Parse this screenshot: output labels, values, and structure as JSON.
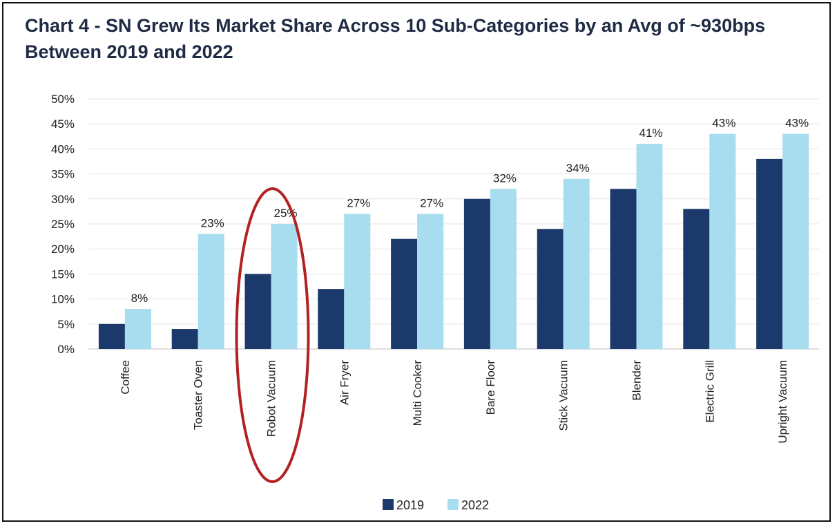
{
  "chart_data": {
    "type": "bar",
    "title": "Chart 4 - SN Grew Its Market Share Across 10 Sub-Categories by an Avg of ~930bps Between 2019 and 2022",
    "categories": [
      "Coffee",
      "Toaster Oven",
      "Robot Vacuum",
      "Air Fryer",
      "Multi Cooker",
      "Bare Floor",
      "Stick Vacuum",
      "Blender",
      "Electric Grill",
      "Upright Vacuum"
    ],
    "series": [
      {
        "name": "2019",
        "values": [
          5,
          4,
          15,
          12,
          22,
          30,
          24,
          32,
          28,
          38
        ],
        "color": "#1b3a6b"
      },
      {
        "name": "2022",
        "values": [
          8,
          23,
          25,
          27,
          27,
          32,
          34,
          41,
          43,
          43
        ],
        "color": "#a8dcef"
      }
    ],
    "data_labels": {
      "series": "2022",
      "values": [
        "8%",
        "23%",
        "25%",
        "27%",
        "27%",
        "32%",
        "34%",
        "41%",
        "43%",
        "43%"
      ]
    },
    "yticks": [
      "0%",
      "5%",
      "10%",
      "15%",
      "20%",
      "25%",
      "30%",
      "35%",
      "40%",
      "45%",
      "50%"
    ],
    "ylim": [
      0,
      50
    ],
    "grid": true,
    "legend": "bottom",
    "annotation": {
      "shape": "ellipse",
      "target_category": "Robot Vacuum",
      "color": "#b22222"
    }
  }
}
